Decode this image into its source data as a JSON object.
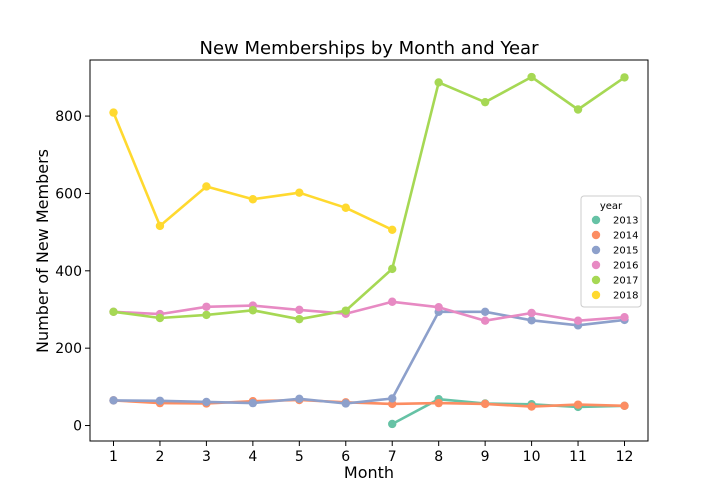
{
  "chart_data": {
    "type": "line",
    "title": "New Memberships by Month and Year",
    "xlabel": "Month",
    "ylabel": "Number of New Members",
    "categories": [
      "1",
      "2",
      "3",
      "4",
      "5",
      "6",
      "7",
      "8",
      "9",
      "10",
      "11",
      "12"
    ],
    "yticks": [
      0,
      200,
      400,
      600,
      800
    ],
    "ylim": [
      -40,
      945
    ],
    "legend": {
      "title": "year",
      "position": "right"
    },
    "series": [
      {
        "name": "2013",
        "color": "#66c2a5",
        "x": [
          7,
          8,
          9,
          10,
          11,
          12
        ],
        "values": [
          4,
          68,
          57,
          55,
          48,
          51
        ]
      },
      {
        "name": "2014",
        "color": "#fc8d62",
        "x": [
          1,
          2,
          3,
          4,
          5,
          6,
          7,
          8,
          9,
          10,
          11,
          12
        ],
        "values": [
          65,
          58,
          57,
          63,
          66,
          60,
          56,
          58,
          56,
          49,
          54,
          51
        ]
      },
      {
        "name": "2015",
        "color": "#8da0cb",
        "x": [
          1,
          2,
          3,
          4,
          5,
          6,
          7,
          8,
          9,
          10,
          11,
          12
        ],
        "values": [
          65,
          64,
          61,
          58,
          69,
          57,
          70,
          294,
          294,
          272,
          259,
          273
        ]
      },
      {
        "name": "2016",
        "color": "#e78ac3",
        "x": [
          1,
          2,
          3,
          4,
          5,
          6,
          7,
          8,
          9,
          10,
          11,
          12
        ],
        "values": [
          294,
          288,
          307,
          310,
          299,
          289,
          320,
          306,
          271,
          291,
          271,
          280
        ]
      },
      {
        "name": "2017",
        "color": "#a6d854",
        "x": [
          1,
          2,
          3,
          4,
          5,
          6,
          7,
          8,
          9,
          10,
          11,
          12
        ],
        "values": [
          294,
          278,
          286,
          298,
          275,
          297,
          405,
          887,
          836,
          901,
          817,
          900
        ]
      },
      {
        "name": "2018",
        "color": "#ffd92f",
        "x": [
          1,
          2,
          3,
          4,
          5,
          6,
          7
        ],
        "values": [
          809,
          516,
          618,
          585,
          602,
          563,
          506
        ]
      }
    ]
  }
}
